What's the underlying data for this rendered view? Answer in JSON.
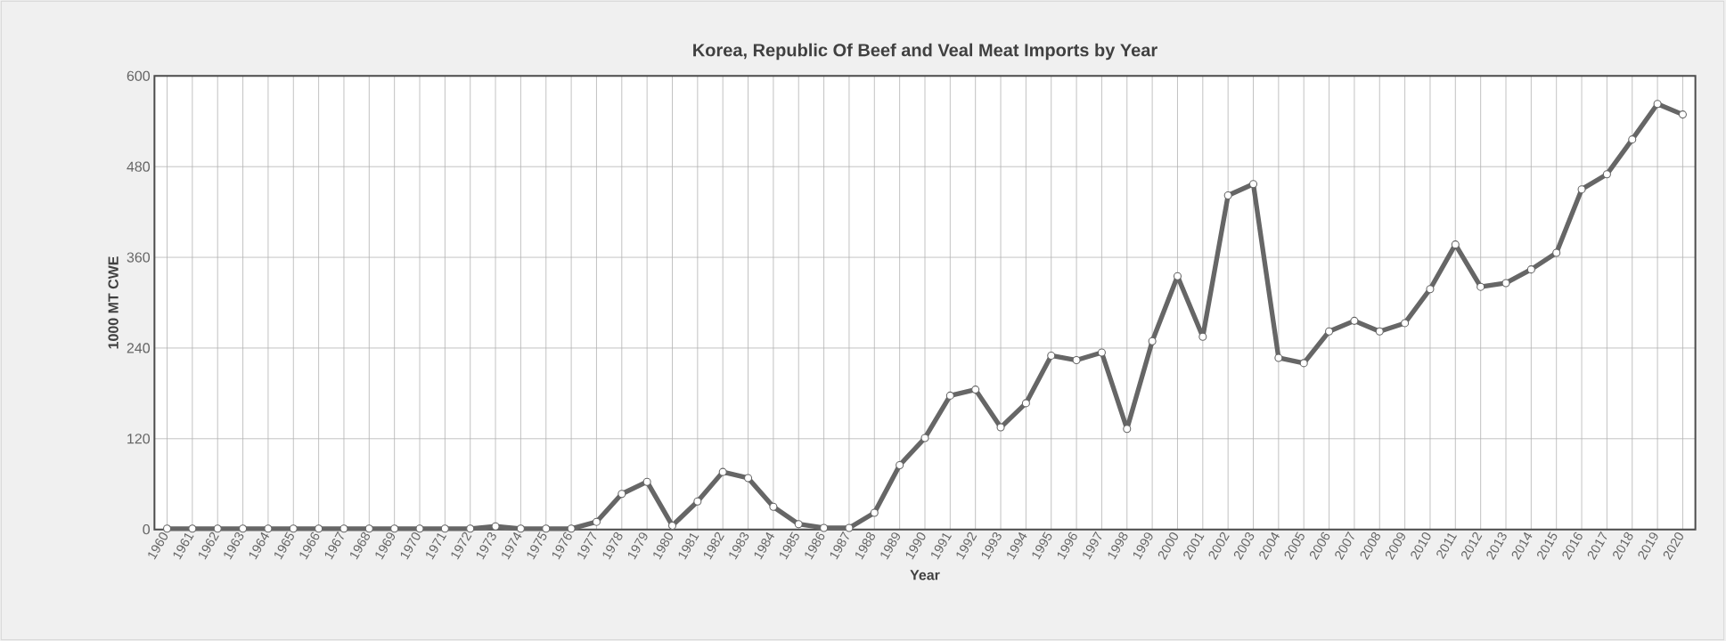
{
  "chart_data": {
    "type": "line",
    "title": "Korea, Republic Of Beef and Veal Meat Imports by Year",
    "xlabel": "Year",
    "ylabel": "1000 MT CWE",
    "categories": [
      "1960",
      "1961",
      "1962",
      "1963",
      "1964",
      "1965",
      "1966",
      "1967",
      "1968",
      "1969",
      "1970",
      "1971",
      "1972",
      "1973",
      "1974",
      "1975",
      "1976",
      "1977",
      "1978",
      "1979",
      "1980",
      "1981",
      "1982",
      "1983",
      "1984",
      "1985",
      "1986",
      "1987",
      "1988",
      "1989",
      "1990",
      "1991",
      "1992",
      "1993",
      "1994",
      "1995",
      "1996",
      "1997",
      "1998",
      "1999",
      "2000",
      "2001",
      "2002",
      "2003",
      "2004",
      "2005",
      "2006",
      "2007",
      "2008",
      "2009",
      "2010",
      "2011",
      "2012",
      "2013",
      "2014",
      "2015",
      "2016",
      "2017",
      "2018",
      "2019",
      "2020"
    ],
    "series": [
      {
        "color": "#666666",
        "values": [
          1,
          1,
          1,
          1,
          1,
          1,
          1,
          1,
          1,
          1,
          1,
          1,
          1,
          4,
          1,
          1,
          1,
          10,
          47,
          63,
          5,
          37,
          76,
          68,
          30,
          7,
          2,
          2,
          22,
          85,
          121,
          177,
          185,
          135,
          167,
          230,
          224,
          234,
          133,
          249,
          335,
          255,
          442,
          457,
          227,
          220,
          262,
          276,
          262,
          273,
          318,
          377,
          321,
          326,
          344,
          366,
          450,
          470,
          516,
          563,
          549
        ]
      }
    ],
    "ylim": [
      0,
      600
    ],
    "yticks": [
      0,
      120,
      240,
      360,
      480,
      600
    ],
    "grid": true,
    "marker": "circle",
    "line_style": "solid"
  }
}
